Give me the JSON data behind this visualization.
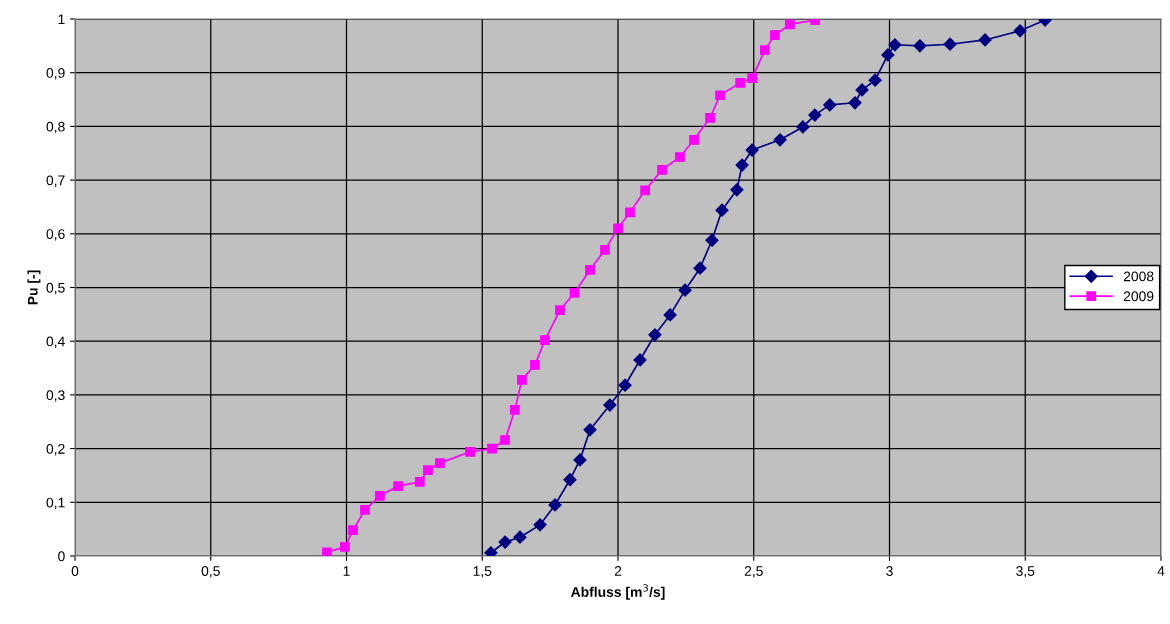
{
  "chart_data": {
    "type": "line",
    "xlabel": "Abfluss [m$^{3}$/s]",
    "ylabel": "Pu [-]",
    "xlim": [
      0,
      4
    ],
    "ylim": [
      0,
      1
    ],
    "xticks": [
      0,
      {
        "value": 0.5,
        "label": "0,5"
      },
      1,
      {
        "value": 1.5,
        "label": "1,5"
      },
      2,
      {
        "value": 2.5,
        "label": "2,5"
      },
      3,
      {
        "value": 3.5,
        "label": "3,5"
      },
      4
    ],
    "yticks": [
      0,
      {
        "value": 0.1,
        "label": "0,1"
      },
      {
        "value": 0.2,
        "label": "0,2"
      },
      {
        "value": 0.3,
        "label": "0,3"
      },
      {
        "value": 0.4,
        "label": "0,4"
      },
      {
        "value": 0.5,
        "label": "0,5"
      },
      {
        "value": 0.6,
        "label": "0,6"
      },
      {
        "value": 0.7,
        "label": "0,7"
      },
      {
        "value": 0.8,
        "label": "0,8"
      },
      {
        "value": 0.9,
        "label": "0,9"
      },
      1
    ],
    "grid": true,
    "legend": "right",
    "series": [
      {
        "name": "2008",
        "color": "#000080",
        "marker": "diamond",
        "x": [
          1.532,
          1.584,
          1.639,
          1.713,
          1.768,
          1.823,
          1.86,
          1.897,
          1.97,
          2.026,
          2.081,
          2.136,
          2.192,
          2.247,
          2.302,
          2.346,
          2.383,
          2.438,
          2.457,
          2.494,
          2.597,
          2.681,
          2.725,
          2.78,
          2.873,
          2.899,
          2.947,
          2.994,
          3.02,
          3.112,
          3.223,
          3.352,
          3.481,
          3.573
        ],
        "values": [
          0.006,
          0.026,
          0.035,
          0.058,
          0.095,
          0.142,
          0.179,
          0.235,
          0.281,
          0.318,
          0.365,
          0.412,
          0.449,
          0.495,
          0.536,
          0.588,
          0.644,
          0.682,
          0.728,
          0.756,
          0.775,
          0.799,
          0.821,
          0.84,
          0.844,
          0.868,
          0.886,
          0.933,
          0.952,
          0.95,
          0.953,
          0.961,
          0.978,
          0.998
        ]
      },
      {
        "name": "2009",
        "color": "#ff00ff",
        "marker": "square",
        "x": [
          0.928,
          0.994,
          1.024,
          1.068,
          1.123,
          1.19,
          1.27,
          1.3,
          1.344,
          1.455,
          1.536,
          1.584,
          1.62,
          1.646,
          1.694,
          1.731,
          1.786,
          1.84,
          1.897,
          1.952,
          2.0,
          2.044,
          2.1,
          2.162,
          2.228,
          2.28,
          2.339,
          2.376,
          2.45,
          2.494,
          2.541,
          2.578,
          2.633,
          2.726
        ],
        "values": [
          0.007,
          0.017,
          0.048,
          0.086,
          0.112,
          0.13,
          0.138,
          0.16,
          0.173,
          0.194,
          0.2,
          0.216,
          0.272,
          0.328,
          0.356,
          0.402,
          0.458,
          0.49,
          0.533,
          0.57,
          0.61,
          0.64,
          0.681,
          0.719,
          0.743,
          0.775,
          0.816,
          0.858,
          0.881,
          0.89,
          0.942,
          0.97,
          0.99,
          0.998
        ]
      }
    ]
  }
}
